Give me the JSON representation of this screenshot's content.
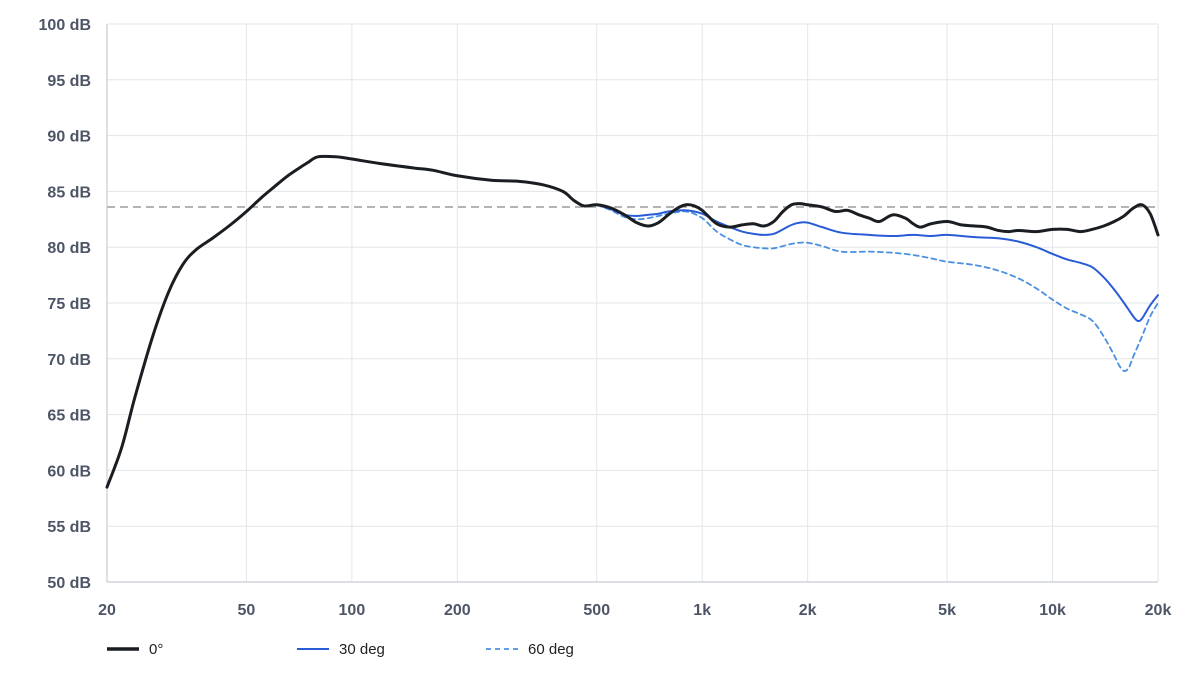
{
  "chart_data": {
    "type": "line",
    "title": "",
    "xlabel": "",
    "ylabel": "",
    "x_scale": "log",
    "xlim": [
      20,
      20000
    ],
    "ylim": [
      50,
      100
    ],
    "grid": true,
    "legend_position": "bottom-left",
    "x_ticks": [
      {
        "value": 20,
        "label": "20"
      },
      {
        "value": 50,
        "label": "50"
      },
      {
        "value": 100,
        "label": "100"
      },
      {
        "value": 200,
        "label": "200"
      },
      {
        "value": 500,
        "label": "500"
      },
      {
        "value": 1000,
        "label": "1k"
      },
      {
        "value": 2000,
        "label": "2k"
      },
      {
        "value": 5000,
        "label": "5k"
      },
      {
        "value": 10000,
        "label": "10k"
      },
      {
        "value": 20000,
        "label": "20k"
      }
    ],
    "y_ticks": [
      {
        "value": 100,
        "label": "100 dB"
      },
      {
        "value": 95,
        "label": "95 dB"
      },
      {
        "value": 90,
        "label": "90 dB"
      },
      {
        "value": 85,
        "label": "85 dB"
      },
      {
        "value": 80,
        "label": "80 dB"
      },
      {
        "value": 75,
        "label": "75 dB"
      },
      {
        "value": 70,
        "label": "70 dB"
      },
      {
        "value": 65,
        "label": "65 dB"
      },
      {
        "value": 60,
        "label": "60 dB"
      },
      {
        "value": 55,
        "label": "55 dB"
      },
      {
        "value": 50,
        "label": "50 dB"
      }
    ],
    "reference_line": {
      "y": 83.6,
      "color": "#888888",
      "style": "dashed"
    },
    "series": [
      {
        "name": "0°",
        "color": "#1a1d21",
        "style": "solid",
        "width": 3,
        "points": [
          [
            20,
            58.5
          ],
          [
            22,
            62
          ],
          [
            24,
            66.5
          ],
          [
            27,
            72
          ],
          [
            30,
            76
          ],
          [
            33,
            78.5
          ],
          [
            36,
            79.8
          ],
          [
            40,
            80.8
          ],
          [
            45,
            82
          ],
          [
            50,
            83.2
          ],
          [
            55,
            84.4
          ],
          [
            60,
            85.4
          ],
          [
            65,
            86.3
          ],
          [
            70,
            87
          ],
          [
            75,
            87.6
          ],
          [
            80,
            88.1
          ],
          [
            90,
            88.1
          ],
          [
            100,
            87.9
          ],
          [
            120,
            87.5
          ],
          [
            150,
            87.1
          ],
          [
            170,
            86.9
          ],
          [
            200,
            86.4
          ],
          [
            250,
            86.0
          ],
          [
            300,
            85.9
          ],
          [
            350,
            85.6
          ],
          [
            400,
            85.0
          ],
          [
            430,
            84.2
          ],
          [
            460,
            83.7
          ],
          [
            500,
            83.8
          ],
          [
            550,
            83.5
          ],
          [
            600,
            82.9
          ],
          [
            650,
            82.2
          ],
          [
            700,
            81.9
          ],
          [
            750,
            82.2
          ],
          [
            800,
            82.9
          ],
          [
            850,
            83.5
          ],
          [
            900,
            83.8
          ],
          [
            950,
            83.7
          ],
          [
            1000,
            83.3
          ],
          [
            1100,
            82.1
          ],
          [
            1200,
            81.8
          ],
          [
            1300,
            82.0
          ],
          [
            1400,
            82.1
          ],
          [
            1500,
            81.9
          ],
          [
            1600,
            82.3
          ],
          [
            1700,
            83.2
          ],
          [
            1800,
            83.8
          ],
          [
            1900,
            83.9
          ],
          [
            2000,
            83.8
          ],
          [
            2200,
            83.6
          ],
          [
            2400,
            83.2
          ],
          [
            2600,
            83.3
          ],
          [
            2800,
            82.9
          ],
          [
            3000,
            82.6
          ],
          [
            3200,
            82.3
          ],
          [
            3500,
            82.9
          ],
          [
            3800,
            82.6
          ],
          [
            4000,
            82.1
          ],
          [
            4200,
            81.8
          ],
          [
            4500,
            82.1
          ],
          [
            5000,
            82.3
          ],
          [
            5500,
            82.0
          ],
          [
            6000,
            81.9
          ],
          [
            6500,
            81.8
          ],
          [
            7000,
            81.5
          ],
          [
            7500,
            81.4
          ],
          [
            8000,
            81.5
          ],
          [
            9000,
            81.4
          ],
          [
            10000,
            81.6
          ],
          [
            11000,
            81.6
          ],
          [
            12000,
            81.4
          ],
          [
            13000,
            81.6
          ],
          [
            14000,
            81.9
          ],
          [
            15000,
            82.3
          ],
          [
            16000,
            82.8
          ],
          [
            17000,
            83.5
          ],
          [
            18000,
            83.8
          ],
          [
            19000,
            83.0
          ],
          [
            20000,
            81.1
          ]
        ]
      },
      {
        "name": "30 deg",
        "color": "#2a5bd7",
        "style": "solid",
        "width": 2,
        "points": [
          [
            500,
            83.8
          ],
          [
            550,
            83.4
          ],
          [
            600,
            82.9
          ],
          [
            650,
            82.8
          ],
          [
            700,
            82.9
          ],
          [
            750,
            83.0
          ],
          [
            800,
            83.2
          ],
          [
            900,
            83.3
          ],
          [
            1000,
            83.0
          ],
          [
            1100,
            82.3
          ],
          [
            1200,
            81.8
          ],
          [
            1300,
            81.4
          ],
          [
            1400,
            81.2
          ],
          [
            1500,
            81.1
          ],
          [
            1600,
            81.2
          ],
          [
            1700,
            81.6
          ],
          [
            1800,
            82.0
          ],
          [
            1900,
            82.2
          ],
          [
            2000,
            82.2
          ],
          [
            2200,
            81.8
          ],
          [
            2500,
            81.3
          ],
          [
            3000,
            81.1
          ],
          [
            3500,
            81.0
          ],
          [
            4000,
            81.1
          ],
          [
            4500,
            81.0
          ],
          [
            5000,
            81.1
          ],
          [
            6000,
            80.9
          ],
          [
            7000,
            80.8
          ],
          [
            8000,
            80.5
          ],
          [
            9000,
            80.0
          ],
          [
            10000,
            79.4
          ],
          [
            11000,
            78.9
          ],
          [
            12000,
            78.6
          ],
          [
            13000,
            78.2
          ],
          [
            14000,
            77.3
          ],
          [
            15000,
            76.2
          ],
          [
            16000,
            75.0
          ],
          [
            17000,
            73.8
          ],
          [
            17500,
            73.4
          ],
          [
            18000,
            73.6
          ],
          [
            19000,
            74.8
          ],
          [
            20000,
            75.7
          ]
        ]
      },
      {
        "name": "60 deg",
        "color": "#4a90e2",
        "style": "dashed",
        "width": 1.8,
        "points": [
          [
            500,
            83.8
          ],
          [
            550,
            83.3
          ],
          [
            600,
            82.7
          ],
          [
            650,
            82.5
          ],
          [
            700,
            82.6
          ],
          [
            750,
            82.8
          ],
          [
            800,
            83.0
          ],
          [
            900,
            83.2
          ],
          [
            1000,
            82.6
          ],
          [
            1100,
            81.4
          ],
          [
            1200,
            80.7
          ],
          [
            1300,
            80.2
          ],
          [
            1400,
            80.0
          ],
          [
            1500,
            79.9
          ],
          [
            1600,
            79.9
          ],
          [
            1700,
            80.1
          ],
          [
            1800,
            80.3
          ],
          [
            1900,
            80.4
          ],
          [
            2000,
            80.4
          ],
          [
            2200,
            80.1
          ],
          [
            2500,
            79.6
          ],
          [
            3000,
            79.6
          ],
          [
            3500,
            79.5
          ],
          [
            4000,
            79.3
          ],
          [
            4500,
            79.0
          ],
          [
            5000,
            78.7
          ],
          [
            6000,
            78.4
          ],
          [
            7000,
            77.9
          ],
          [
            8000,
            77.2
          ],
          [
            9000,
            76.3
          ],
          [
            10000,
            75.3
          ],
          [
            11000,
            74.5
          ],
          [
            12000,
            74.0
          ],
          [
            13000,
            73.4
          ],
          [
            14000,
            72.0
          ],
          [
            15000,
            70.3
          ],
          [
            15500,
            69.4
          ],
          [
            16000,
            68.9
          ],
          [
            16500,
            69.2
          ],
          [
            17000,
            70.2
          ],
          [
            18000,
            72.0
          ],
          [
            19000,
            73.8
          ],
          [
            20000,
            75.0
          ]
        ]
      }
    ]
  }
}
